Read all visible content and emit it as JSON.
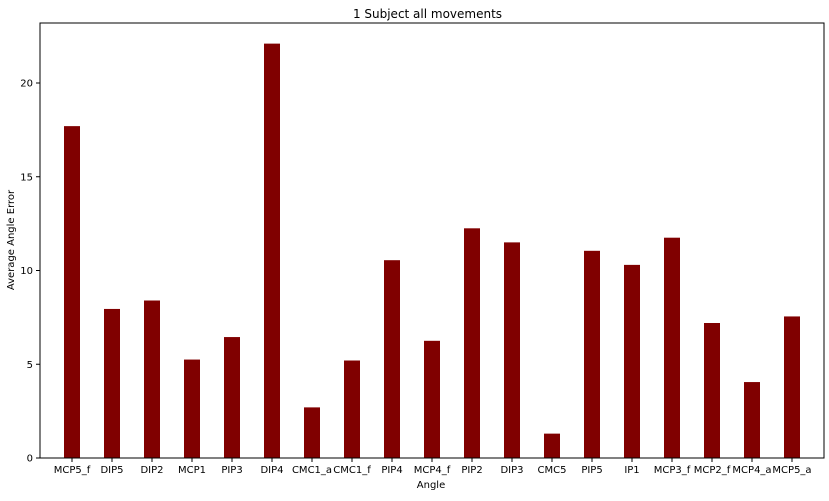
{
  "chart_data": {
    "type": "bar",
    "title": "1 Subject all movements",
    "xlabel": "Angle",
    "ylabel": "Average Angle Error",
    "categories": [
      "MCP5_f",
      "DIP5",
      "DIP2",
      "MCP1",
      "PIP3",
      "DIP4",
      "CMC1_a",
      "CMC1_f",
      "PIP4",
      "MCP4_f",
      "PIP2",
      "DIP3",
      "CMC5",
      "PIP5",
      "IP1",
      "MCP3_f",
      "MCP2_f",
      "MCP4_a",
      "MCP5_a"
    ],
    "values": [
      17.7,
      7.95,
      8.4,
      5.25,
      6.45,
      22.1,
      2.7,
      5.2,
      10.55,
      6.25,
      12.25,
      11.5,
      1.3,
      11.05,
      10.3,
      11.75,
      7.2,
      4.05,
      7.55
    ],
    "ylim": [
      0,
      23.2
    ],
    "yticks": [
      0,
      5,
      10,
      15,
      20
    ],
    "bar_color": "#800000",
    "grid": false,
    "legend": false
  }
}
